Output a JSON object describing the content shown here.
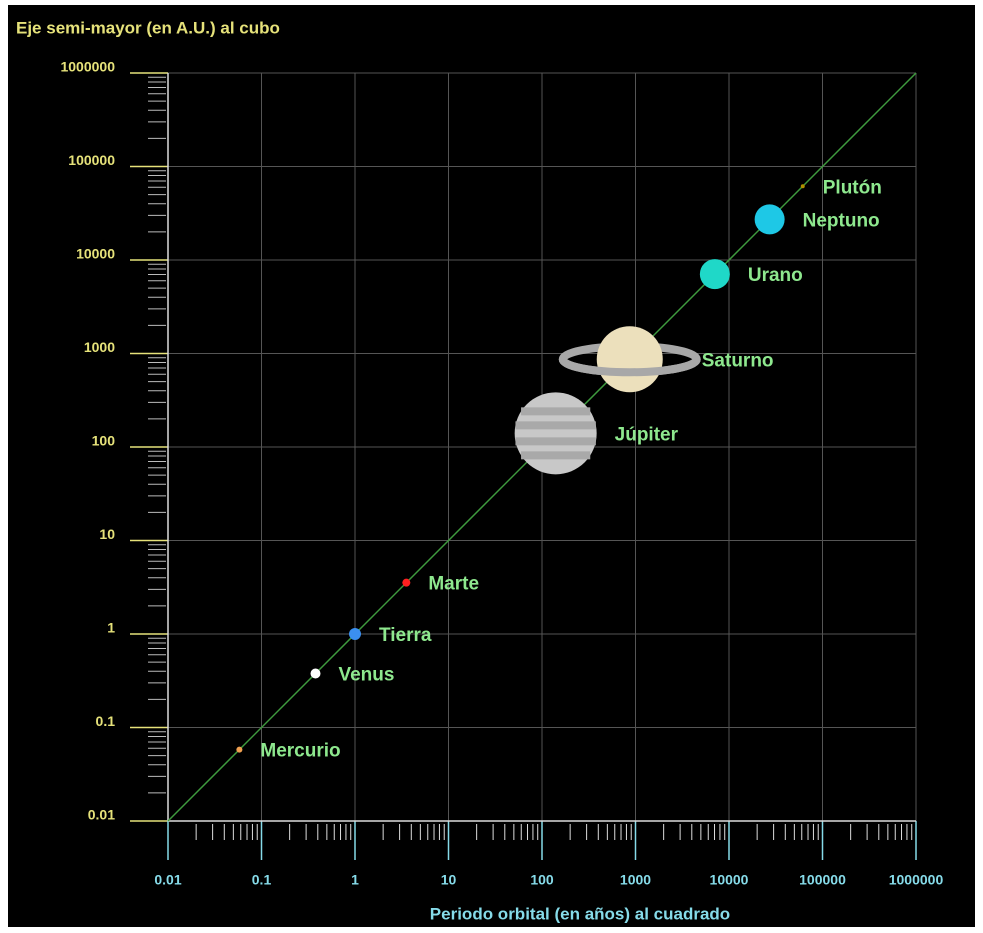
{
  "chart_data": {
    "type": "scatter",
    "title": "Eje semi-mayor (en A.U.) al cubo",
    "x_label": "Periodo orbital (en años) al cuadrado",
    "log_x": true,
    "log_y": true,
    "grid": true,
    "xlim": [
      0.01,
      1000000
    ],
    "ylim": [
      0.01,
      1000000
    ],
    "xticks": [
      0.01,
      0.1,
      1,
      10,
      100,
      1000,
      10000,
      100000,
      1000000
    ],
    "yticks": [
      0.01,
      0.1,
      1,
      10,
      100,
      1000,
      10000,
      100000,
      1000000
    ],
    "series": [
      {
        "name": "Mercurio",
        "color": "#f0a050",
        "x": [
          0.058
        ],
        "values": [
          0.058
        ]
      },
      {
        "name": "Venus",
        "color": "#ffffff",
        "x": [
          0.378
        ],
        "values": [
          0.378
        ]
      },
      {
        "name": "Tierra",
        "color": "#3b8ff0",
        "x": [
          1
        ],
        "values": [
          1
        ]
      },
      {
        "name": "Marte",
        "color": "#ff2020",
        "x": [
          3.54
        ],
        "values": [
          3.54
        ]
      },
      {
        "name": "Júpiter",
        "color": "#c8c8c8",
        "x": [
          140
        ],
        "values": [
          140
        ]
      },
      {
        "name": "Saturno",
        "color": "#ece0bc",
        "x": [
          868
        ],
        "values": [
          868
        ]
      },
      {
        "name": "Urano",
        "color": "#1fd8c8",
        "x": [
          7060
        ],
        "values": [
          7060
        ]
      },
      {
        "name": "Neptuno",
        "color": "#1ec8e6",
        "x": [
          27200
        ],
        "values": [
          27200
        ]
      },
      {
        "name": "Plutón",
        "color": "#b09000",
        "x": [
          61500
        ],
        "values": [
          61500
        ]
      }
    ]
  }
}
